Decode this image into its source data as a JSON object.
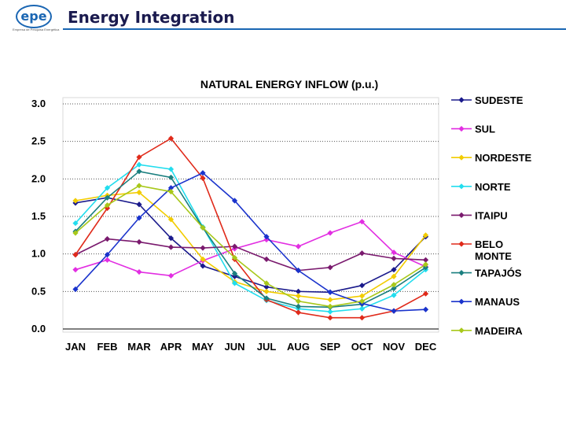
{
  "header": {
    "logo_text": "epe",
    "logo_subtitle": "Empresa de Pesquisa Energética",
    "title": "Energy Integration"
  },
  "chart_data": {
    "type": "line",
    "title": "NATURAL ENERGY INFLOW (p.u.)",
    "xlabel": "",
    "ylabel": "",
    "categories": [
      "JAN",
      "FEB",
      "MAR",
      "APR",
      "MAY",
      "JUN",
      "JUL",
      "AUG",
      "SEP",
      "OCT",
      "NOV",
      "DEC"
    ],
    "ylim": [
      0,
      3.0
    ],
    "yticks": [
      "0.0",
      "0.5",
      "1.0",
      "1.5",
      "2.0",
      "2.5",
      "3.0"
    ],
    "grid": "horizontal-dotted",
    "legend": "right",
    "series": [
      {
        "name": "SUDESTE",
        "color": "#1a1a8c",
        "values": [
          1.68,
          1.75,
          1.66,
          1.21,
          0.84,
          0.7,
          0.56,
          0.5,
          0.49,
          0.58,
          0.79,
          1.23
        ]
      },
      {
        "name": "SUL",
        "color": "#e22ee2",
        "values": [
          0.79,
          0.92,
          0.76,
          0.71,
          0.91,
          1.07,
          1.19,
          1.1,
          1.28,
          1.43,
          1.02,
          0.83
        ]
      },
      {
        "name": "NORDESTE",
        "color": "#f2cc00",
        "values": [
          1.71,
          1.78,
          1.82,
          1.46,
          0.93,
          0.63,
          0.5,
          0.44,
          0.39,
          0.44,
          0.7,
          1.25
        ]
      },
      {
        "name": "NORTE",
        "color": "#22ddee",
        "values": [
          1.41,
          1.88,
          2.19,
          2.13,
          1.36,
          0.61,
          0.38,
          0.27,
          0.23,
          0.27,
          0.45,
          0.79
        ]
      },
      {
        "name": "ITAIPU",
        "color": "#7a1a6e",
        "values": [
          0.99,
          1.2,
          1.16,
          1.09,
          1.08,
          1.1,
          0.93,
          0.78,
          0.82,
          1.01,
          0.94,
          0.92
        ]
      },
      {
        "name": "BELO MONTE",
        "color": "#e02a1a",
        "values": [
          0.99,
          1.61,
          2.29,
          2.54,
          2.01,
          0.93,
          0.39,
          0.22,
          0.15,
          0.15,
          0.24,
          0.47
        ]
      },
      {
        "name": "TAPAJÓS",
        "color": "#1a7f7f",
        "values": [
          1.3,
          1.75,
          2.1,
          2.02,
          1.35,
          0.74,
          0.41,
          0.3,
          0.29,
          0.33,
          0.54,
          0.82
        ]
      },
      {
        "name": "MANAUS",
        "color": "#1a33cc",
        "values": [
          0.53,
          0.99,
          1.48,
          1.88,
          2.08,
          1.71,
          1.23,
          0.78,
          0.49,
          0.34,
          0.24,
          0.26
        ]
      },
      {
        "name": "MADEIRA",
        "color": "#a8c81a",
        "values": [
          1.28,
          1.65,
          1.91,
          1.83,
          1.35,
          0.95,
          0.61,
          0.37,
          0.3,
          0.37,
          0.59,
          0.86
        ]
      }
    ]
  }
}
